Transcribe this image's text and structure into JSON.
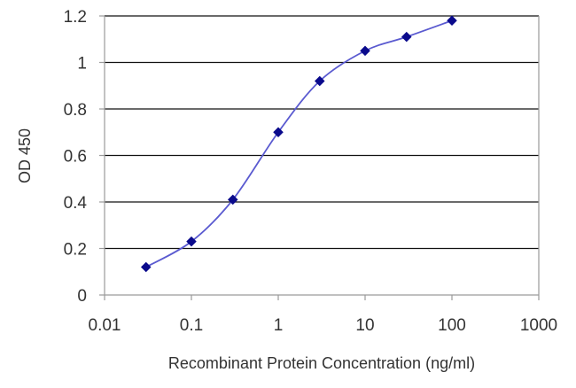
{
  "chart_data": {
    "type": "line",
    "title": "",
    "xlabel": "Recombinant Protein Concentration (ng/ml)",
    "ylabel": "OD 450",
    "x_scale": "log",
    "xlim": [
      0.01,
      1000
    ],
    "ylim": [
      0,
      1.2
    ],
    "x_ticks": [
      0.01,
      0.1,
      1,
      10,
      100,
      1000
    ],
    "x_tick_labels": [
      "0.01",
      "0.1",
      "1",
      "10",
      "100",
      "1000"
    ],
    "y_ticks": [
      0,
      0.2,
      0.4,
      0.6,
      0.8,
      1,
      1.2
    ],
    "y_tick_labels": [
      "0",
      "0.2",
      "0.4",
      "0.6",
      "0.8",
      "1",
      "1.2"
    ],
    "grid": "horizontal",
    "legend": "none",
    "series": [
      {
        "x": [
          0.03,
          0.1,
          0.3,
          1,
          3,
          10,
          30,
          100
        ],
        "y": [
          0.12,
          0.23,
          0.41,
          0.7,
          0.92,
          1.05,
          1.11,
          1.18
        ]
      }
    ],
    "colors": {
      "line": "#5a5ad0",
      "marker": "#0a0a8c",
      "grid": "#111111",
      "frame": "#9a9a9a",
      "text": "#333333"
    }
  }
}
